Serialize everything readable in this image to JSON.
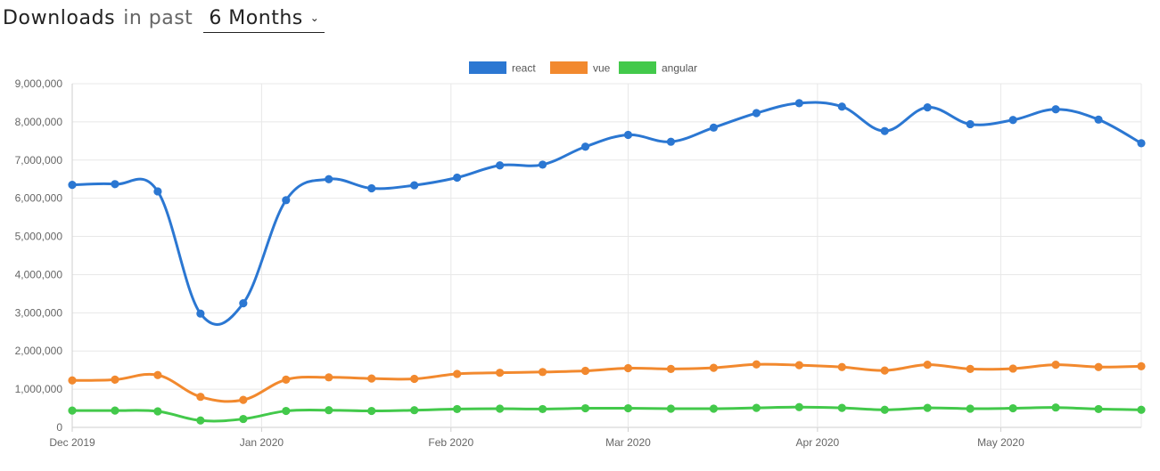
{
  "header": {
    "title": "Downloads",
    "middle": "in past",
    "period": "6 Months"
  },
  "chart_data": {
    "type": "line",
    "title": "",
    "xlabel": "",
    "ylabel": "",
    "x": [
      "2019-12-01",
      "2019-12-08",
      "2019-12-15",
      "2019-12-22",
      "2019-12-29",
      "2020-01-05",
      "2020-01-12",
      "2020-01-19",
      "2020-01-26",
      "2020-02-02",
      "2020-02-09",
      "2020-02-16",
      "2020-02-23",
      "2020-03-01",
      "2020-03-08",
      "2020-03-15",
      "2020-03-22",
      "2020-03-29",
      "2020-04-05",
      "2020-04-12",
      "2020-04-19",
      "2020-04-26",
      "2020-05-03",
      "2020-05-10",
      "2020-05-17",
      "2020-05-24"
    ],
    "x_ticks": [
      {
        "date": "2019-12-01",
        "label": "Dec 2019"
      },
      {
        "date": "2020-01-01",
        "label": "Jan 2020"
      },
      {
        "date": "2020-02-01",
        "label": "Feb 2020"
      },
      {
        "date": "2020-03-01",
        "label": "Mar 2020"
      },
      {
        "date": "2020-04-01",
        "label": "Apr 2020"
      },
      {
        "date": "2020-05-01",
        "label": "May 2020"
      }
    ],
    "y_ticks": [
      "0",
      "1,000,000",
      "2,000,000",
      "3,000,000",
      "4,000,000",
      "5,000,000",
      "6,000,000",
      "7,000,000",
      "8,000,000",
      "9,000,000"
    ],
    "ylim": [
      0,
      9000000
    ],
    "xlim": [
      "2019-12-01",
      "2020-05-24"
    ],
    "grid": true,
    "legend_position": "top-center",
    "series": [
      {
        "name": "react",
        "color": "#2b77d2",
        "values": [
          6350000,
          6370000,
          6180000,
          2980000,
          3250000,
          5950000,
          6500000,
          6260000,
          6340000,
          6540000,
          6860000,
          6880000,
          7350000,
          7660000,
          7480000,
          7850000,
          8230000,
          8490000,
          8400000,
          7760000,
          8380000,
          7940000,
          8050000,
          8330000,
          8060000,
          7440000
        ]
      },
      {
        "name": "vue",
        "color": "#f2892e",
        "values": [
          1230000,
          1250000,
          1370000,
          800000,
          720000,
          1250000,
          1310000,
          1280000,
          1270000,
          1400000,
          1430000,
          1450000,
          1480000,
          1550000,
          1530000,
          1560000,
          1650000,
          1630000,
          1580000,
          1490000,
          1640000,
          1530000,
          1540000,
          1640000,
          1580000,
          1600000
        ]
      },
      {
        "name": "angular",
        "color": "#43c94b",
        "values": [
          440000,
          440000,
          420000,
          180000,
          220000,
          430000,
          450000,
          430000,
          450000,
          480000,
          490000,
          480000,
          500000,
          500000,
          490000,
          490000,
          510000,
          530000,
          510000,
          460000,
          510000,
          490000,
          500000,
          520000,
          480000,
          460000
        ]
      }
    ]
  }
}
